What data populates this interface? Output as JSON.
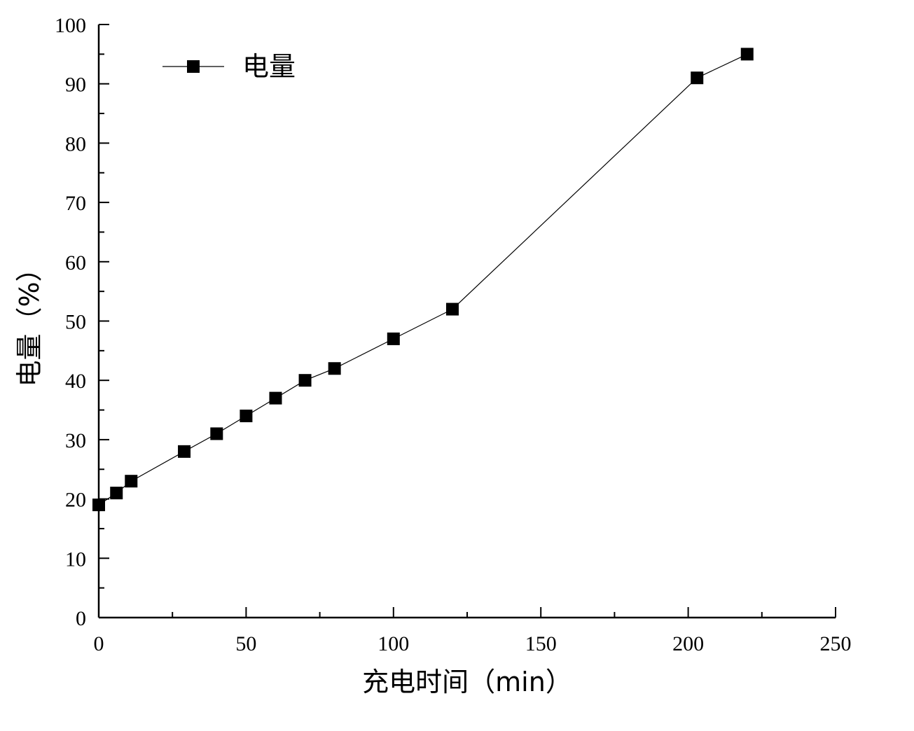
{
  "chart_data": {
    "type": "line",
    "title": "",
    "xlabel": "充电时间（min）",
    "ylabel": "电量（%）",
    "xlim": [
      0,
      250
    ],
    "ylim": [
      0,
      100
    ],
    "xticks": [
      0,
      50,
      100,
      150,
      200,
      250
    ],
    "yticks": [
      0,
      10,
      20,
      30,
      40,
      50,
      60,
      70,
      80,
      90,
      100
    ],
    "xtick_labels": [
      "0",
      "50",
      "100",
      "150",
      "200",
      "250"
    ],
    "ytick_labels": [
      "0",
      "10",
      "20",
      "30",
      "40",
      "50",
      "60",
      "70",
      "80",
      "90",
      "100"
    ],
    "grid": false,
    "legend_position": "top-left",
    "series": [
      {
        "name": "电量",
        "color": "#000000",
        "marker": "square",
        "x": [
          0,
          6,
          11,
          29,
          40,
          50,
          60,
          70,
          80,
          100,
          120,
          203,
          220
        ],
        "y": [
          19,
          21,
          23,
          28,
          31,
          34,
          37,
          40,
          42,
          47,
          52,
          91,
          95
        ]
      }
    ]
  }
}
